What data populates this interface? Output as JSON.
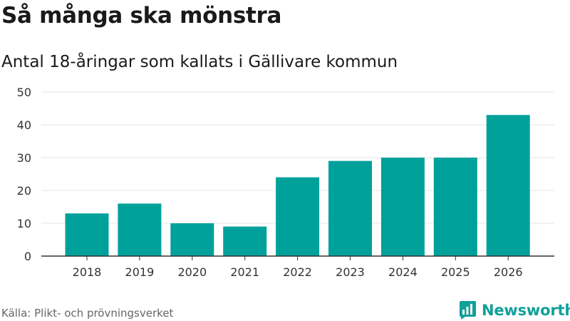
{
  "header": {
    "title": "Så många ska mönstra",
    "subtitle": "Antal 18-åringar som kallats i Gällivare kommun"
  },
  "chart_data": {
    "type": "bar",
    "title": "Så många ska mönstra",
    "subtitle": "Antal 18-åringar som kallats i Gällivare kommun",
    "categories": [
      "2018",
      "2019",
      "2020",
      "2021",
      "2022",
      "2023",
      "2024",
      "2025",
      "2026"
    ],
    "values": [
      13,
      16,
      10,
      9,
      24,
      29,
      30,
      30,
      43
    ],
    "xlabel": "",
    "ylabel": "",
    "ylim": [
      0,
      50
    ],
    "yticks": [
      "0",
      "10",
      "20",
      "30",
      "40",
      "50"
    ],
    "grid": true,
    "bar_color": "#00a19a",
    "grid_color": "#e6e6e6",
    "axis_color": "#333333"
  },
  "footer": {
    "source": "Källa: Plikt- och prövningsverket",
    "brand": "Newsworthy",
    "brand_color": "#11a09a",
    "brand_icon": "newsworthy-logo-icon"
  }
}
